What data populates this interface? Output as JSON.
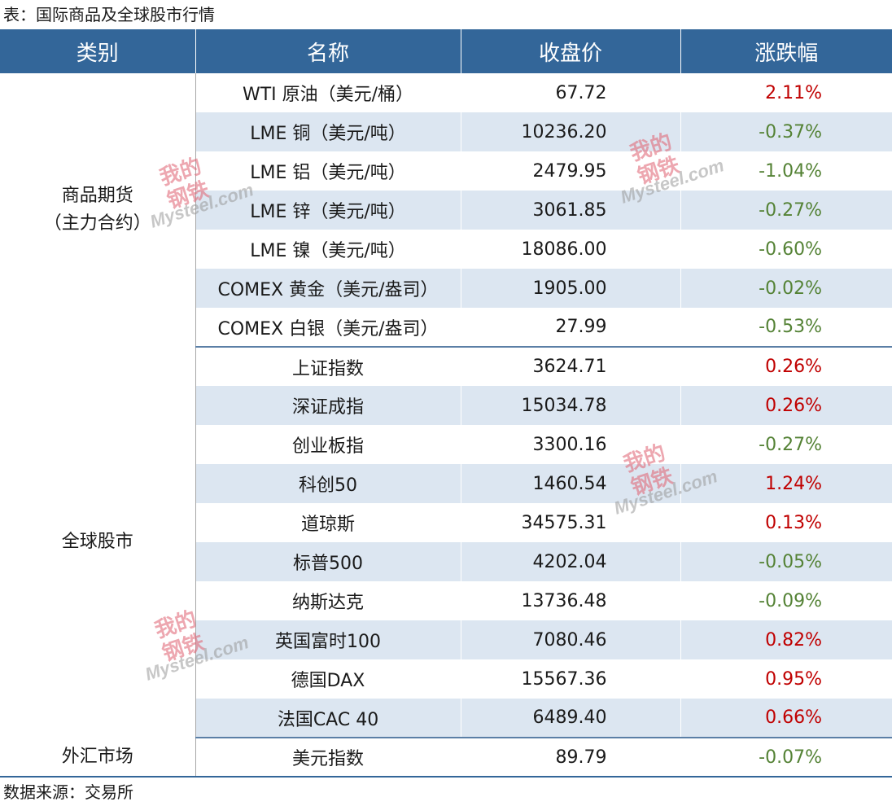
{
  "caption": "表：国际商品及全球股市行情",
  "footer": "数据来源：交易所",
  "watermark": {
    "seal_text": "我的钢铁",
    "logo_text": "Mysteel.com"
  },
  "colors": {
    "header_bg": "#336699",
    "band": "#dce6f1",
    "up": "#c00000",
    "down": "#548235"
  },
  "table": {
    "headers": [
      "类别",
      "名称",
      "收盘价",
      "涨跌幅"
    ],
    "groups": [
      {
        "category_line1": "商品期货",
        "category_line2": "（主力合约）",
        "rows": [
          {
            "name": "WTI 原油（美元/桶）",
            "close": "67.72",
            "change": "2.11%",
            "dir": "up"
          },
          {
            "name": "LME 铜（美元/吨）",
            "close": "10236.20",
            "change": "-0.37%",
            "dir": "down"
          },
          {
            "name": "LME 铝（美元/吨）",
            "close": "2479.95",
            "change": "-1.04%",
            "dir": "down"
          },
          {
            "name": "LME 锌（美元/吨）",
            "close": "3061.85",
            "change": "-0.27%",
            "dir": "down"
          },
          {
            "name": "LME 镍（美元/吨）",
            "close": "18086.00",
            "change": "-0.60%",
            "dir": "down"
          },
          {
            "name": "COMEX 黄金（美元/盎司）",
            "close": "1905.00",
            "change": "-0.02%",
            "dir": "down"
          },
          {
            "name": "COMEX 白银（美元/盎司）",
            "close": "27.99",
            "change": "-0.53%",
            "dir": "down"
          }
        ]
      },
      {
        "category_line1": "全球股市",
        "category_line2": "",
        "rows": [
          {
            "name": "上证指数",
            "close": "3624.71",
            "change": "0.26%",
            "dir": "up"
          },
          {
            "name": "深证成指",
            "close": "15034.78",
            "change": "0.26%",
            "dir": "up"
          },
          {
            "name": "创业板指",
            "close": "3300.16",
            "change": "-0.27%",
            "dir": "down"
          },
          {
            "name": "科创50",
            "close": "1460.54",
            "change": "1.24%",
            "dir": "up"
          },
          {
            "name": "道琼斯",
            "close": "34575.31",
            "change": "0.13%",
            "dir": "up"
          },
          {
            "name": "标普500",
            "close": "4202.04",
            "change": "-0.05%",
            "dir": "down"
          },
          {
            "name": "纳斯达克",
            "close": "13736.48",
            "change": "-0.09%",
            "dir": "down"
          },
          {
            "name": "英国富时100",
            "close": "7080.46",
            "change": "0.82%",
            "dir": "up"
          },
          {
            "name": "德国DAX",
            "close": "15567.36",
            "change": "0.95%",
            "dir": "up"
          },
          {
            "name": "法国CAC 40",
            "close": "6489.40",
            "change": "0.66%",
            "dir": "up"
          }
        ]
      },
      {
        "category_line1": "外汇市场",
        "category_line2": "",
        "rows": [
          {
            "name": "美元指数",
            "close": "89.79",
            "change": "-0.07%",
            "dir": "down"
          }
        ]
      }
    ]
  }
}
